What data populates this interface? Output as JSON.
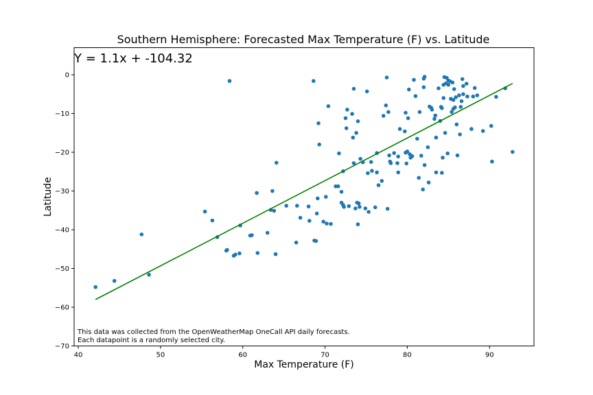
{
  "chart_data": {
    "type": "scatter",
    "title": "Southern Hemisphere: Forecasted Max Temperature (F) vs. Latitude",
    "xlabel": "Max Temperature (F)",
    "ylabel": "Latitude",
    "xlim": [
      39.5,
      95.4
    ],
    "ylim": [
      -70,
      7
    ],
    "xticks": [
      40,
      50,
      60,
      70,
      80,
      90
    ],
    "yticks": [
      0,
      -10,
      -20,
      -30,
      -40,
      -50,
      -60,
      -70
    ],
    "grid": false,
    "point_color": "#1f77b4",
    "line_color": "#008000",
    "regression": {
      "label": "Y = 1.1x + -104.32",
      "slope": 1.1,
      "intercept": -104.32,
      "x_range": [
        42.1,
        92.8
      ]
    },
    "notes": [
      "This data was collected from the OpenWeatherMap OneCall API daily forecasts.",
      "Each datapoint is a randomly selected city."
    ],
    "points": [
      [
        42.1,
        -54.8
      ],
      [
        44.4,
        -53.2
      ],
      [
        47.7,
        -41.2
      ],
      [
        48.6,
        -51.6
      ],
      [
        55.4,
        -35.3
      ],
      [
        56.3,
        -37.6
      ],
      [
        56.9,
        -41.9
      ],
      [
        58.0,
        -45.4
      ],
      [
        58.1,
        -45.2
      ],
      [
        58.4,
        -1.6
      ],
      [
        58.9,
        -46.7
      ],
      [
        59.1,
        -46.4
      ],
      [
        59.6,
        -46.1
      ],
      [
        59.7,
        -38.9
      ],
      [
        60.9,
        -41.5
      ],
      [
        61.1,
        -41.4
      ],
      [
        61.7,
        -30.5
      ],
      [
        61.8,
        -46.0
      ],
      [
        63.0,
        -40.8
      ],
      [
        63.4,
        -34.9
      ],
      [
        63.6,
        -30.0
      ],
      [
        63.8,
        -35.1
      ],
      [
        64.0,
        -46.3
      ],
      [
        64.1,
        -22.7
      ],
      [
        65.3,
        -33.8
      ],
      [
        66.5,
        -43.3
      ],
      [
        66.6,
        -33.8
      ],
      [
        67.0,
        -36.9
      ],
      [
        68.0,
        -34.0
      ],
      [
        68.1,
        -37.7
      ],
      [
        68.6,
        -1.6
      ],
      [
        68.7,
        -42.8
      ],
      [
        68.9,
        -42.9
      ],
      [
        69.0,
        -35.8
      ],
      [
        69.1,
        -31.9
      ],
      [
        69.2,
        -12.5
      ],
      [
        69.3,
        -18.0
      ],
      [
        69.8,
        -37.9
      ],
      [
        70.1,
        -31.5
      ],
      [
        70.2,
        -38.4
      ],
      [
        70.4,
        -8.1
      ],
      [
        70.7,
        -38.5
      ],
      [
        71.3,
        -28.8
      ],
      [
        71.6,
        -28.8
      ],
      [
        71.7,
        -20.3
      ],
      [
        72.0,
        -30.2
      ],
      [
        72.0,
        -33.0
      ],
      [
        72.2,
        -33.6
      ],
      [
        72.3,
        -34.1
      ],
      [
        72.2,
        -24.9
      ],
      [
        72.5,
        -11.2
      ],
      [
        72.6,
        -13.8
      ],
      [
        72.7,
        -9.0
      ],
      [
        72.9,
        -33.9
      ],
      [
        73.3,
        -10.1
      ],
      [
        73.4,
        -16.2
      ],
      [
        73.5,
        -3.6
      ],
      [
        73.5,
        -22.8
      ],
      [
        73.7,
        -34.5
      ],
      [
        73.8,
        -15.0
      ],
      [
        73.9,
        -33.0
      ],
      [
        74.0,
        -12.0
      ],
      [
        74.0,
        -38.6
      ],
      [
        74.1,
        -33.2
      ],
      [
        74.2,
        -34.1
      ],
      [
        74.3,
        -21.7
      ],
      [
        74.6,
        -22.6
      ],
      [
        74.9,
        -34.5
      ],
      [
        75.1,
        -4.3
      ],
      [
        75.2,
        -25.4
      ],
      [
        75.3,
        -35.4
      ],
      [
        75.6,
        -22.5
      ],
      [
        75.7,
        -24.8
      ],
      [
        76.1,
        -34.2
      ],
      [
        76.3,
        -25.2
      ],
      [
        76.3,
        -20.2
      ],
      [
        76.5,
        -28.5
      ],
      [
        76.9,
        -27.4
      ],
      [
        77.1,
        -10.6
      ],
      [
        77.4,
        -7.9
      ],
      [
        77.5,
        -0.7
      ],
      [
        77.6,
        -34.6
      ],
      [
        77.7,
        -9.6
      ],
      [
        77.8,
        -20.8
      ],
      [
        77.9,
        -22.4
      ],
      [
        78.0,
        -22.8
      ],
      [
        78.4,
        -20.2
      ],
      [
        78.8,
        -22.8
      ],
      [
        78.9,
        -21.1
      ],
      [
        78.9,
        -25.2
      ],
      [
        79.1,
        -14.0
      ],
      [
        79.7,
        -14.6
      ],
      [
        79.8,
        -9.8
      ],
      [
        79.8,
        -20.1
      ],
      [
        79.9,
        -22.9
      ],
      [
        80.0,
        -19.8
      ],
      [
        80.1,
        -11.2
      ],
      [
        80.2,
        -3.8
      ],
      [
        80.3,
        -20.5
      ],
      [
        80.4,
        -21.4
      ],
      [
        80.6,
        -21.0
      ],
      [
        80.8,
        -1.3
      ],
      [
        81.0,
        -5.5
      ],
      [
        81.2,
        -16.5
      ],
      [
        81.4,
        -26.6
      ],
      [
        81.5,
        -9.6
      ],
      [
        81.7,
        -20.9
      ],
      [
        81.9,
        -29.6
      ],
      [
        82.0,
        -1.0
      ],
      [
        82.0,
        -3.2
      ],
      [
        82.1,
        -23.3
      ],
      [
        82.1,
        -0.5
      ],
      [
        82.5,
        -18.7
      ],
      [
        82.6,
        -27.8
      ],
      [
        82.7,
        -8.2
      ],
      [
        82.9,
        -8.5
      ],
      [
        83.0,
        -9.0
      ],
      [
        83.3,
        -11.4
      ],
      [
        83.4,
        -10.5
      ],
      [
        83.5,
        -16.2
      ],
      [
        83.5,
        -25.2
      ],
      [
        83.8,
        -3.5
      ],
      [
        84.0,
        -11.9
      ],
      [
        84.1,
        -8.3
      ],
      [
        84.2,
        -8.6
      ],
      [
        84.2,
        -25.3
      ],
      [
        84.3,
        -21.4
      ],
      [
        84.4,
        -2.6
      ],
      [
        84.4,
        -6.0
      ],
      [
        84.5,
        -0.6
      ],
      [
        84.6,
        -15.0
      ],
      [
        84.7,
        -2.2
      ],
      [
        84.8,
        -0.8
      ],
      [
        84.9,
        -20.3
      ],
      [
        85.0,
        -1.5
      ],
      [
        85.0,
        -2.6
      ],
      [
        85.2,
        -1.7
      ],
      [
        85.3,
        -6.2
      ],
      [
        85.4,
        -9.6
      ],
      [
        85.5,
        -2.0
      ],
      [
        85.6,
        -6.5
      ],
      [
        85.6,
        -8.8
      ],
      [
        85.7,
        -3.7
      ],
      [
        85.8,
        -8.4
      ],
      [
        85.9,
        -5.8
      ],
      [
        86.0,
        -12.8
      ],
      [
        86.1,
        -20.8
      ],
      [
        86.3,
        -5.3
      ],
      [
        86.4,
        -15.4
      ],
      [
        86.5,
        -8.3
      ],
      [
        86.6,
        -6.8
      ],
      [
        86.7,
        -1.1
      ],
      [
        86.8,
        -2.9
      ],
      [
        86.8,
        -5.0
      ],
      [
        87.2,
        -2.3
      ],
      [
        87.3,
        -5.6
      ],
      [
        87.8,
        -14.0
      ],
      [
        88.0,
        -5.6
      ],
      [
        88.2,
        -3.4
      ],
      [
        88.5,
        -5.3
      ],
      [
        89.2,
        -14.5
      ],
      [
        90.2,
        -13.2
      ],
      [
        90.3,
        -22.4
      ],
      [
        90.8,
        -5.7
      ],
      [
        91.9,
        -3.5
      ],
      [
        92.8,
        -19.9
      ]
    ]
  }
}
